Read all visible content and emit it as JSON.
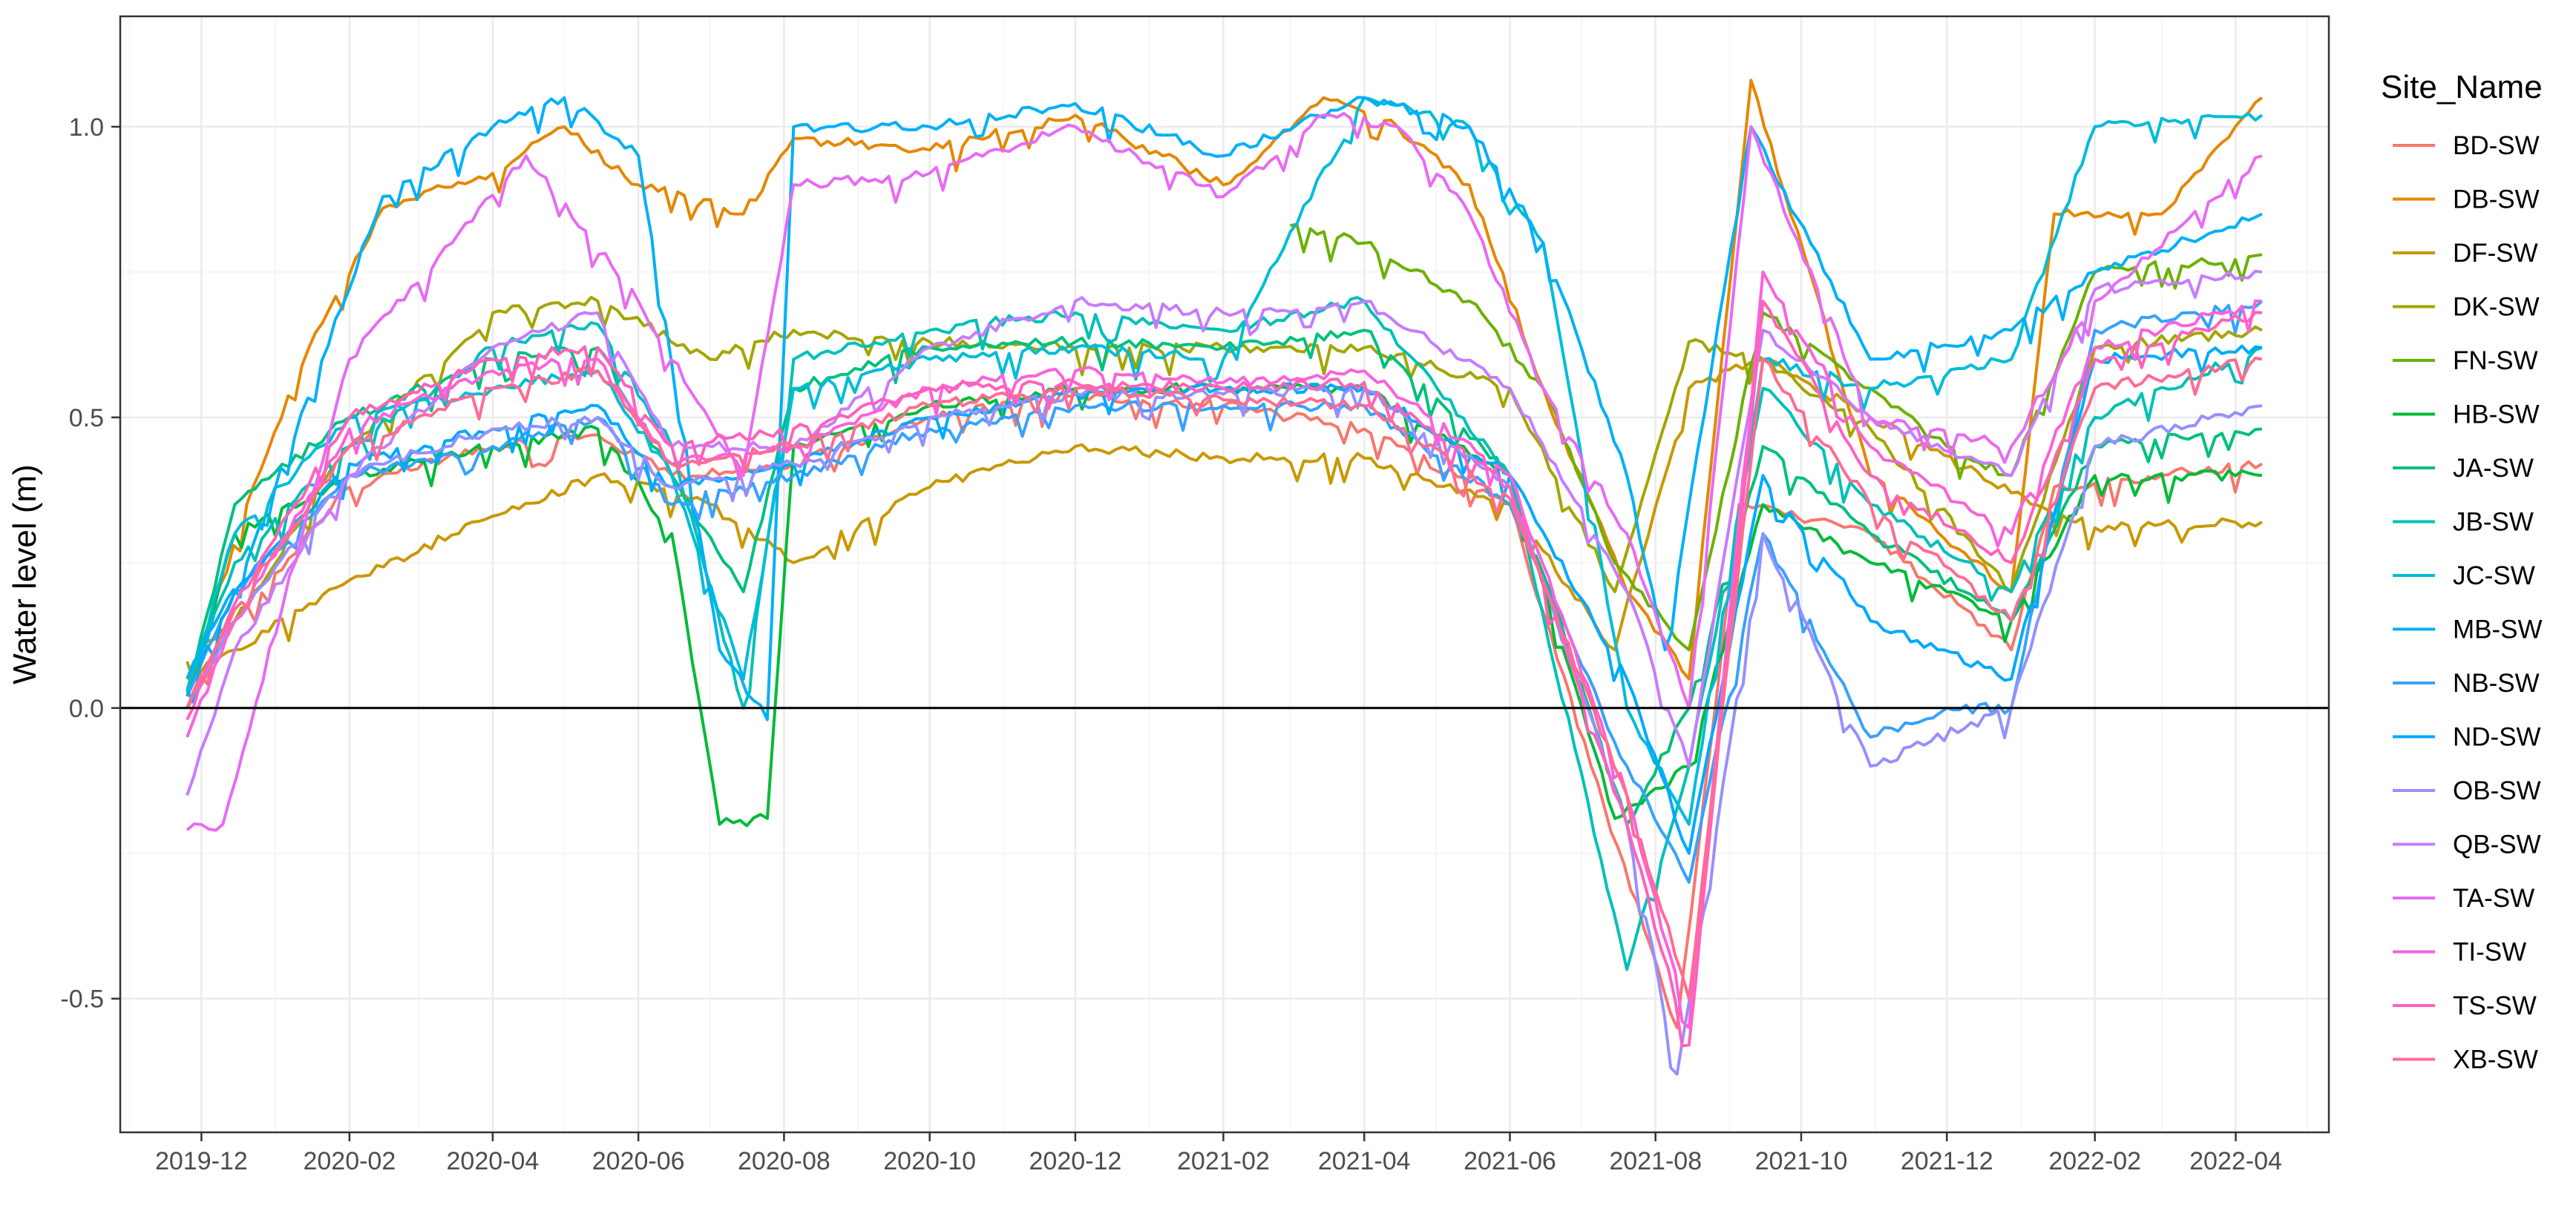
{
  "chart_data": {
    "type": "line",
    "title": "",
    "xlabel": "",
    "ylabel": "Water level (m)",
    "x_type": "date",
    "xlim": [
      "2019-10-28",
      "2022-05-10"
    ],
    "ylim": [
      -0.73,
      1.19
    ],
    "x_ticks": [
      "2019-12",
      "2020-02",
      "2020-04",
      "2020-06",
      "2020-08",
      "2020-10",
      "2020-12",
      "2021-02",
      "2021-04",
      "2021-06",
      "2021-08",
      "2021-10",
      "2021-12",
      "2022-02",
      "2022-04"
    ],
    "y_ticks": [
      -0.5,
      0.0,
      0.5,
      1.0
    ],
    "y_tick_labels": [
      "-0.5",
      "0.0",
      "0.5",
      "1.0"
    ],
    "hline": 0,
    "grid": true,
    "legend_title": "Site_Name",
    "legend_position": "right",
    "series": [
      {
        "name": "BD-SW",
        "color": "#F8766D",
        "x": [
          "2019-11-25",
          "2019-12-15",
          "2020-02-01",
          "2020-04-01",
          "2020-05-15",
          "2020-06-15",
          "2020-08-05",
          "2020-10-01",
          "2020-12-01",
          "2021-02-01",
          "2021-04-01",
          "2021-06-01",
          "2021-07-05",
          "2021-08-10",
          "2021-09-05",
          "2021-10-30",
          "2021-12-28",
          "2022-01-15",
          "2022-03-01",
          "2022-04-12"
        ],
        "y": [
          0.0,
          0.15,
          0.38,
          0.45,
          0.47,
          0.4,
          0.42,
          0.5,
          0.54,
          0.52,
          0.48,
          0.35,
          -0.1,
          -0.55,
          0.35,
          0.3,
          0.1,
          0.38,
          0.4,
          0.42
        ]
      },
      {
        "name": "DB-SW",
        "color": "#E58700",
        "x": [
          "2019-11-25",
          "2019-12-20",
          "2020-01-15",
          "2020-02-15",
          "2020-04-01",
          "2020-05-01",
          "2020-06-01",
          "2020-07-15",
          "2020-08-05",
          "2020-10-01",
          "2020-12-01",
          "2021-02-01",
          "2021-03-15",
          "2021-04-15",
          "2021-05-15",
          "2021-06-15",
          "2021-07-20",
          "2021-08-15",
          "2021-09-10",
          "2021-10-30",
          "2021-12-28",
          "2022-01-15",
          "2022-03-01",
          "2022-04-12"
        ],
        "y": [
          0.03,
          0.35,
          0.62,
          0.86,
          0.92,
          1.0,
          0.9,
          0.85,
          0.98,
          0.96,
          1.02,
          0.9,
          1.05,
          1.0,
          0.9,
          0.55,
          0.2,
          0.05,
          1.08,
          0.4,
          0.2,
          0.85,
          0.85,
          1.05
        ]
      },
      {
        "name": "DF-SW",
        "color": "#C99800",
        "x": [
          "2019-11-25",
          "2019-12-15",
          "2020-02-01",
          "2020-04-01",
          "2020-05-15",
          "2020-07-01",
          "2020-08-05",
          "2020-10-01",
          "2020-12-01",
          "2021-02-01",
          "2021-04-01",
          "2021-06-01",
          "2021-07-15",
          "2021-08-15",
          "2021-09-15",
          "2021-10-30",
          "2021-12-28",
          "2022-02-01",
          "2022-04-12"
        ],
        "y": [
          0.05,
          0.1,
          0.22,
          0.33,
          0.4,
          0.35,
          0.25,
          0.38,
          0.45,
          0.43,
          0.43,
          0.35,
          0.1,
          0.55,
          0.6,
          0.5,
          0.37,
          0.31,
          0.32
        ]
      },
      {
        "name": "DK-SW",
        "color": "#A3A500",
        "x": [
          "2019-11-25",
          "2019-12-15",
          "2020-02-01",
          "2020-04-01",
          "2020-05-15",
          "2020-07-01",
          "2020-08-05",
          "2020-10-01",
          "2020-12-01",
          "2021-02-01",
          "2021-04-01",
          "2021-06-01",
          "2021-07-15",
          "2021-08-15",
          "2021-09-15",
          "2021-10-30",
          "2021-12-28",
          "2022-02-01",
          "2022-04-12"
        ],
        "y": [
          0.08,
          0.15,
          0.45,
          0.68,
          0.7,
          0.6,
          0.65,
          0.63,
          0.62,
          0.62,
          0.62,
          0.55,
          0.2,
          0.63,
          0.6,
          0.48,
          0.2,
          0.62,
          0.65
        ]
      },
      {
        "name": "FN-SW",
        "color": "#6BB100",
        "x": [
          "2021-03-01",
          "2021-04-01",
          "2021-05-15",
          "2021-06-15",
          "2021-07-15",
          "2021-08-15",
          "2021-09-15",
          "2021-10-30",
          "2021-12-01",
          "2021-12-28",
          "2022-02-01",
          "2022-04-12"
        ],
        "y": [
          0.83,
          0.8,
          0.7,
          0.55,
          0.25,
          0.1,
          0.68,
          0.55,
          0.45,
          0.4,
          0.75,
          0.78
        ]
      },
      {
        "name": "HB-SW",
        "color": "#00BA38",
        "x": [
          "2019-11-25",
          "2019-12-15",
          "2020-02-01",
          "2020-04-01",
          "2020-05-15",
          "2020-06-15",
          "2020-07-05",
          "2020-07-25",
          "2020-08-05",
          "2020-10-01",
          "2020-12-01",
          "2021-02-01",
          "2021-04-01",
          "2021-06-01",
          "2021-07-15",
          "2021-08-15",
          "2021-09-15",
          "2021-10-30",
          "2021-12-01",
          "2021-12-28",
          "2022-02-01",
          "2022-04-12"
        ],
        "y": [
          0.02,
          0.3,
          0.4,
          0.45,
          0.48,
          0.3,
          -0.2,
          -0.19,
          0.45,
          0.52,
          0.55,
          0.55,
          0.55,
          0.4,
          -0.19,
          -0.1,
          0.35,
          0.25,
          0.2,
          0.15,
          0.4,
          0.4
        ]
      },
      {
        "name": "JA-SW",
        "color": "#00BF7D",
        "x": [
          "2019-11-25",
          "2019-12-15",
          "2020-02-01",
          "2020-04-01",
          "2020-05-15",
          "2020-06-15",
          "2020-07-15",
          "2020-08-05",
          "2020-10-01",
          "2020-12-01",
          "2021-02-01",
          "2021-04-01",
          "2021-06-01",
          "2021-07-20",
          "2021-08-15",
          "2021-09-15",
          "2021-10-30",
          "2021-12-28",
          "2022-02-01",
          "2022-04-12"
        ],
        "y": [
          0.03,
          0.35,
          0.5,
          0.6,
          0.62,
          0.4,
          0.2,
          0.55,
          0.62,
          0.63,
          0.62,
          0.65,
          0.4,
          -0.2,
          0.0,
          0.45,
          0.3,
          0.15,
          0.45,
          0.48
        ]
      },
      {
        "name": "JB-SW",
        "color": "#00C0B8",
        "x": [
          "2019-11-25",
          "2019-12-15",
          "2020-02-01",
          "2020-04-01",
          "2020-05-15",
          "2020-06-15",
          "2020-07-15",
          "2020-08-05",
          "2020-10-01",
          "2020-12-01",
          "2021-02-01",
          "2021-04-01",
          "2021-06-01",
          "2021-07-20",
          "2021-08-15",
          "2021-09-15",
          "2021-10-30",
          "2021-12-28",
          "2022-02-01",
          "2022-04-12"
        ],
        "y": [
          0.03,
          0.25,
          0.45,
          0.62,
          0.66,
          0.45,
          0.0,
          0.6,
          0.65,
          0.68,
          0.65,
          0.7,
          0.4,
          -0.45,
          -0.1,
          0.55,
          0.35,
          0.2,
          0.5,
          0.62
        ]
      },
      {
        "name": "JC-SW",
        "color": "#00BCD8",
        "x": [
          "2019-11-25",
          "2019-12-15",
          "2020-02-01",
          "2020-04-01",
          "2020-05-15",
          "2020-06-15",
          "2020-07-15",
          "2020-08-05",
          "2020-10-01",
          "2020-12-01",
          "2021-02-01",
          "2021-04-01",
          "2021-05-15",
          "2021-06-15",
          "2021-07-20",
          "2021-08-15",
          "2021-09-15",
          "2021-10-30",
          "2021-12-28",
          "2022-02-01",
          "2022-04-12"
        ],
        "y": [
          0.03,
          0.3,
          0.5,
          0.55,
          0.58,
          0.4,
          0.05,
          0.55,
          0.6,
          0.62,
          0.6,
          1.05,
          1.0,
          0.8,
          0.0,
          -0.2,
          0.6,
          0.55,
          0.6,
          1.0,
          1.02
        ]
      },
      {
        "name": "MB-SW",
        "color": "#00B0F6",
        "x": [
          "2019-11-25",
          "2019-12-20",
          "2020-02-15",
          "2020-04-01",
          "2020-05-01",
          "2020-06-01",
          "2020-07-05",
          "2020-07-25",
          "2020-08-05",
          "2020-10-01",
          "2020-12-01",
          "2021-02-01",
          "2021-04-01",
          "2021-05-15",
          "2021-06-15",
          "2021-07-20",
          "2021-08-05",
          "2021-09-10",
          "2021-10-30",
          "2021-12-28",
          "2022-02-01",
          "2022-04-12"
        ],
        "y": [
          0.05,
          0.25,
          0.88,
          1.0,
          1.05,
          0.95,
          0.1,
          -0.02,
          1.0,
          1.0,
          1.04,
          0.95,
          1.05,
          1.0,
          0.8,
          0.4,
          0.1,
          1.0,
          0.6,
          0.65,
          0.75,
          0.85
        ]
      },
      {
        "name": "NB-SW",
        "color": "#35A2FF",
        "x": [
          "2019-11-25",
          "2019-12-15",
          "2020-02-01",
          "2020-04-01",
          "2020-05-15",
          "2020-06-15",
          "2020-08-05",
          "2020-10-01",
          "2020-12-01",
          "2021-02-01",
          "2021-04-01",
          "2021-06-01",
          "2021-07-20",
          "2021-08-15",
          "2021-09-15",
          "2021-10-30",
          "2021-12-01",
          "2021-12-28",
          "2022-02-01",
          "2022-04-12"
        ],
        "y": [
          0.02,
          0.2,
          0.4,
          0.45,
          0.5,
          0.35,
          0.4,
          0.48,
          0.52,
          0.52,
          0.52,
          0.35,
          -0.1,
          -0.3,
          0.3,
          -0.05,
          0.0,
          0.0,
          0.65,
          0.7
        ]
      },
      {
        "name": "ND-SW",
        "color": "#00A9FF",
        "x": [
          "2019-11-25",
          "2019-12-15",
          "2020-02-01",
          "2020-04-01",
          "2020-05-15",
          "2020-06-15",
          "2020-08-05",
          "2020-10-01",
          "2020-12-01",
          "2021-02-01",
          "2021-04-01",
          "2021-06-01",
          "2021-07-20",
          "2021-08-15",
          "2021-09-15",
          "2021-10-30",
          "2021-12-28",
          "2022-02-01",
          "2022-04-12"
        ],
        "y": [
          0.03,
          0.2,
          0.42,
          0.48,
          0.52,
          0.38,
          0.42,
          0.5,
          0.54,
          0.55,
          0.55,
          0.4,
          0.05,
          -0.25,
          0.4,
          0.15,
          0.05,
          0.6,
          0.62
        ]
      },
      {
        "name": "OB-SW",
        "color": "#9590FF",
        "x": [
          "2019-11-25",
          "2019-12-15",
          "2020-02-01",
          "2020-04-01",
          "2020-05-15",
          "2020-06-15",
          "2020-08-05",
          "2020-10-01",
          "2020-12-01",
          "2021-02-01",
          "2021-04-01",
          "2021-06-01",
          "2021-07-20",
          "2021-08-10",
          "2021-09-15",
          "2021-10-30",
          "2021-12-28",
          "2022-02-01",
          "2022-04-12"
        ],
        "y": [
          0.0,
          0.15,
          0.4,
          0.48,
          0.5,
          0.38,
          0.42,
          0.5,
          0.54,
          0.54,
          0.55,
          0.38,
          -0.2,
          -0.63,
          0.3,
          -0.1,
          0.0,
          0.45,
          0.52
        ]
      },
      {
        "name": "QB-SW",
        "color": "#C77CFF",
        "x": [
          "2019-11-25",
          "2019-12-15",
          "2020-02-01",
          "2020-04-01",
          "2020-05-15",
          "2020-06-15",
          "2020-08-05",
          "2020-10-01",
          "2020-12-01",
          "2021-02-01",
          "2021-04-01",
          "2021-06-01",
          "2021-07-20",
          "2021-08-15",
          "2021-09-15",
          "2021-10-30",
          "2021-12-28",
          "2022-02-01",
          "2022-04-12"
        ],
        "y": [
          -0.15,
          0.1,
          0.4,
          0.62,
          0.68,
          0.45,
          0.45,
          0.62,
          0.7,
          0.68,
          0.7,
          0.55,
          0.2,
          -0.1,
          0.65,
          0.5,
          0.4,
          0.72,
          0.75
        ]
      },
      {
        "name": "TA-SW",
        "color": "#E76BF3",
        "x": [
          "2019-11-25",
          "2019-12-10",
          "2020-02-01",
          "2020-03-15",
          "2020-04-15",
          "2020-06-01",
          "2020-07-15",
          "2020-08-05",
          "2020-10-01",
          "2020-12-01",
          "2021-02-01",
          "2021-03-15",
          "2021-04-15",
          "2021-05-15",
          "2021-06-15",
          "2021-07-20",
          "2021-08-15",
          "2021-09-10",
          "2021-10-30",
          "2021-12-28",
          "2022-02-01",
          "2022-04-12"
        ],
        "y": [
          -0.21,
          -0.2,
          0.6,
          0.8,
          0.95,
          0.7,
          0.4,
          0.9,
          0.92,
          1.0,
          0.88,
          1.02,
          1.0,
          0.85,
          0.55,
          0.3,
          0.0,
          1.0,
          0.5,
          0.45,
          0.7,
          0.95
        ]
      },
      {
        "name": "TI-SW",
        "color": "#FA62DB",
        "x": [
          "2019-11-25",
          "2019-12-15",
          "2020-02-01",
          "2020-04-01",
          "2020-05-15",
          "2020-06-15",
          "2020-08-05",
          "2020-10-01",
          "2020-12-01",
          "2021-02-01",
          "2021-04-01",
          "2021-06-01",
          "2021-07-20",
          "2021-08-15",
          "2021-09-15",
          "2021-10-30",
          "2021-12-28",
          "2022-02-01",
          "2022-04-12"
        ],
        "y": [
          -0.05,
          0.15,
          0.48,
          0.58,
          0.6,
          0.42,
          0.45,
          0.55,
          0.58,
          0.56,
          0.58,
          0.4,
          -0.15,
          -0.55,
          0.75,
          0.45,
          0.3,
          0.62,
          0.7
        ]
      },
      {
        "name": "TS-SW",
        "color": "#FF62BC",
        "x": [
          "2019-11-25",
          "2019-12-15",
          "2020-02-01",
          "2020-04-01",
          "2020-05-15",
          "2020-06-15",
          "2020-08-05",
          "2020-10-01",
          "2020-12-01",
          "2021-02-01",
          "2021-04-01",
          "2021-06-01",
          "2021-07-20",
          "2021-08-15",
          "2021-09-15",
          "2021-10-30",
          "2021-12-28",
          "2022-02-01",
          "2022-04-12"
        ],
        "y": [
          -0.02,
          0.18,
          0.5,
          0.6,
          0.62,
          0.45,
          0.48,
          0.55,
          0.56,
          0.55,
          0.56,
          0.38,
          -0.2,
          -0.58,
          0.7,
          0.4,
          0.25,
          0.6,
          0.68
        ]
      },
      {
        "name": "XB-SW",
        "color": "#FF6C91",
        "x": [
          "2019-11-25",
          "2019-12-15",
          "2020-02-01",
          "2020-04-01",
          "2020-05-15",
          "2020-06-15",
          "2020-08-05",
          "2020-10-01",
          "2020-12-01",
          "2021-02-01",
          "2021-04-01",
          "2021-06-01",
          "2021-07-20",
          "2021-08-15",
          "2021-09-15",
          "2021-10-30",
          "2021-12-28",
          "2022-02-01",
          "2022-04-12"
        ],
        "y": [
          0.0,
          0.17,
          0.45,
          0.55,
          0.58,
          0.42,
          0.45,
          0.52,
          0.55,
          0.53,
          0.52,
          0.36,
          -0.15,
          -0.5,
          0.6,
          0.35,
          0.15,
          0.55,
          0.6
        ]
      }
    ]
  }
}
